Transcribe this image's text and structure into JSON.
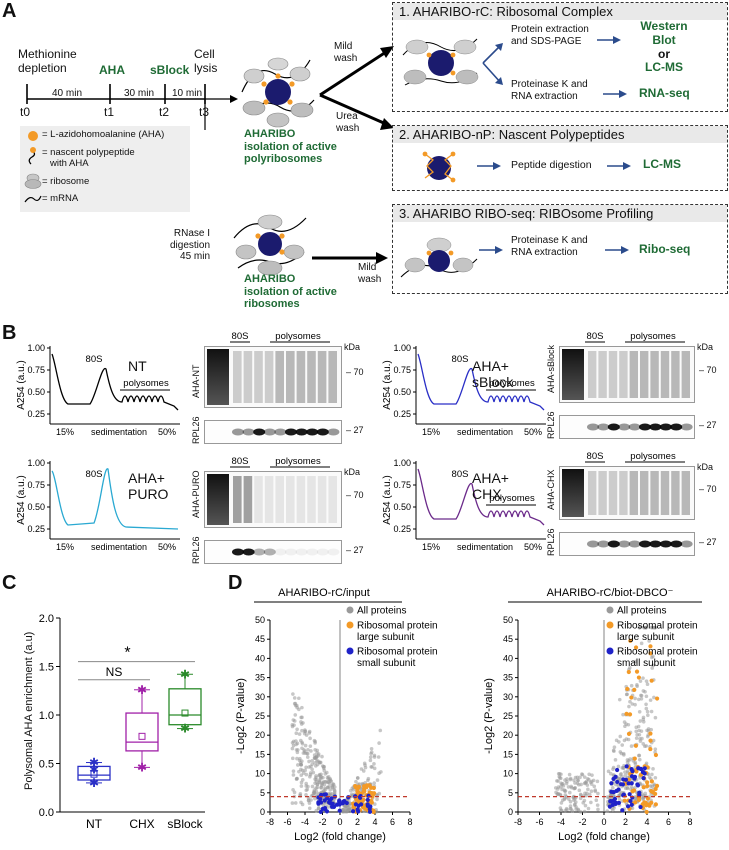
{
  "panelA": {
    "letter": "A",
    "timeline": {
      "steps": [
        "Methionine\ndepletion",
        "AHA",
        "sBlock",
        "Cell\nlysis"
      ],
      "step1": "Methionine",
      "step1b": "depletion",
      "step2": "AHA",
      "step3": "sBlock",
      "step4a": "Cell",
      "step4b": "lysis",
      "t0": "t0",
      "t1": "t1",
      "t2": "t2",
      "t3": "t3",
      "d1": "40 min",
      "d2": "30 min",
      "d3": "10 min"
    },
    "legend": {
      "aha": "= L-azidohomoalanine (AHA)",
      "nascent1": "= nascent polypeptide",
      "nascent2": "with AHA",
      "ribosome": "= ribosome",
      "mrna": "= mRNA"
    },
    "top_complex_label1": "AHARIBO",
    "top_complex_label2": "isolation of active",
    "top_complex_label3": "polyribosomes",
    "mild_wash": "Mild\nwash",
    "mild1": "Mild",
    "mild2": "wash",
    "urea1": "Urea",
    "urea2": "wash",
    "rnase1": "RNase I",
    "rnase2": "digestion",
    "rnase3": "45 min",
    "bottom_complex_label1": "AHARIBO",
    "bottom_complex_label2": "isolation of active",
    "bottom_complex_label3": "ribosomes",
    "mild_wash2a": "Mild",
    "mild_wash2b": "wash",
    "box1": {
      "title": "1. AHARIBO-rC: Ribosomal Complex",
      "step_a1": "Protein extraction",
      "step_a2": "and SDS-PAGE",
      "out_a1": "Western",
      "out_a2": "Blot",
      "out_a3": "or",
      "out_a4": "LC-MS",
      "step_b1": "Proteinase K and",
      "step_b2": "RNA extraction",
      "out_b": "RNA-seq"
    },
    "box2": {
      "title": "2. AHARIBO-nP: Nascent Polypeptides",
      "step": "Peptide digestion",
      "out": "LC-MS"
    },
    "box3": {
      "title": "3. AHARIBO RIBO-seq: RIBOsome Profiling",
      "step1": "Proteinase K and",
      "step2": "RNA extraction",
      "out": "Ribo-seq"
    }
  },
  "panelB": {
    "letter": "B",
    "profiles": [
      {
        "label1": "NT",
        "label2": "",
        "color": "#000000",
        "ylabel": "A254 (a.u.)",
        "peak": "80S",
        "polys": "polysomes",
        "x0": "15%",
        "x1": "50%",
        "xlabel": "sedimentation",
        "yticks": [
          "0.25",
          "0.50",
          "0.75",
          "1.00"
        ]
      },
      {
        "label1": "AHA+",
        "label2": "PURO",
        "color": "#2aa9d2",
        "ylabel": "A254 (a.u.)",
        "peak": "80S",
        "polys": "",
        "x0": "15%",
        "x1": "50%",
        "xlabel": "sedimentation",
        "yticks": [
          "0.25",
          "0.50",
          "0.75",
          "1.00"
        ]
      },
      {
        "label1": "AHA+",
        "label2": "sBlock",
        "color": "#2a2fc6",
        "ylabel": "A254 (a.u.)",
        "peak": "80S",
        "polys": "polysomes",
        "x0": "15%",
        "x1": "50%",
        "xlabel": "sedimentation",
        "yticks": [
          "0.25",
          "0.50",
          "0.75",
          "1.00"
        ]
      },
      {
        "label1": "AHA+",
        "label2": "CHX",
        "color": "#6b2a8a",
        "ylabel": "A254 (a.u.)",
        "peak": "80S",
        "polys": "polysomes",
        "x0": "15%",
        "x1": "50%",
        "xlabel": "sedimentation",
        "yticks": [
          "0.25",
          "0.50",
          "0.75",
          "1.00"
        ]
      }
    ],
    "blots": [
      {
        "lane_label": "AHA-NT",
        "peak": "80S",
        "polys": "polysomes",
        "kda": "kDa",
        "m1": "70",
        "m2": "27",
        "strip_label": "RPL26"
      },
      {
        "lane_label": "AHA-PURO",
        "peak": "80S",
        "polys": "polysomes",
        "kda": "kDa",
        "m1": "70",
        "m2": "27",
        "strip_label": "RPL26"
      },
      {
        "lane_label": "AHA-sBlock",
        "peak": "80S",
        "polys": "polysomes",
        "kda": "kDa",
        "m1": "70",
        "m2": "27",
        "strip_label": "RPL26"
      },
      {
        "lane_label": "AHA-CHX",
        "peak": "80S",
        "polys": "polysomes",
        "kda": "kDa",
        "m1": "70",
        "m2": "27",
        "strip_label": "RPL26"
      }
    ]
  },
  "panelC": {
    "letter": "C",
    "ylabel": "Polysomal AHA enrichment (a.u)",
    "yticks": [
      "0.0",
      "0.5",
      "1.0",
      "1.5",
      "2.0"
    ],
    "ns": "NS",
    "star": "*"
  },
  "chart_data": [
    {
      "type": "box",
      "ylabel": "Polysomal AHA enrichment (a.u)",
      "ylim": [
        0,
        2.0
      ],
      "categories": [
        "NT",
        "CHX",
        "sBlock"
      ],
      "series": [
        {
          "name": "NT",
          "color": "#2a2fc6",
          "q1": 0.33,
          "median": 0.38,
          "q3": 0.47,
          "min": 0.3,
          "max": 0.51,
          "mean": 0.39,
          "points": [
            0.51,
            0.44,
            0.3
          ]
        },
        {
          "name": "CHX",
          "color": "#a020a8",
          "q1": 0.63,
          "median": 0.72,
          "q3": 1.02,
          "min": 0.46,
          "max": 1.26,
          "mean": 0.78,
          "points": [
            1.26,
            0.46
          ]
        },
        {
          "name": "sBlock",
          "color": "#2a8a2a",
          "q1": 0.9,
          "median": 1.0,
          "q3": 1.27,
          "min": 0.86,
          "max": 1.42,
          "mean": 1.02,
          "points": [
            1.42,
            0.86
          ]
        }
      ],
      "annotations": [
        {
          "text": "NS",
          "between": [
            "NT",
            "CHX"
          ]
        },
        {
          "text": "*",
          "between": [
            "NT",
            "sBlock"
          ]
        }
      ]
    },
    {
      "type": "scatter",
      "title": "AHARIBO-rC/input",
      "xlabel": "Log2 (fold change)",
      "ylabel": "-Log2 (P-value)",
      "xlim": [
        -8,
        8
      ],
      "ylim": [
        0,
        50
      ],
      "threshold_y": 4,
      "series": [
        {
          "name": "All proteins",
          "color": "#9a9a9a"
        },
        {
          "name": "Ribosomal protein large subunit",
          "color": "#f39a27"
        },
        {
          "name": "Ribosomal protein small subunit",
          "color": "#1f22c8"
        }
      ]
    },
    {
      "type": "scatter",
      "title": "AHARIBO-rC/biot-DBCO⁻",
      "xlabel": "Log2 (fold change)",
      "ylabel": "-Log2 (P-value)",
      "xlim": [
        -8,
        8
      ],
      "ylim": [
        0,
        50
      ],
      "threshold_y": 4,
      "series": [
        {
          "name": "All proteins",
          "color": "#9a9a9a"
        },
        {
          "name": "Ribosomal protein large subunit",
          "color": "#f39a27"
        },
        {
          "name": "Ribosomal protein small subunit",
          "color": "#1f22c8"
        }
      ]
    }
  ],
  "panelD": {
    "letter": "D",
    "left_title": "AHARIBO-rC/input",
    "right_title": "AHARIBO-rC/biot-DBCO⁻",
    "legend1": "All proteins",
    "legend2a": "Ribosomal protein",
    "legend2b": "large subunit",
    "legend3a": "Ribosomal protein",
    "legend3b": "small subunit",
    "xlabel": "Log2 (fold change)",
    "ylabel": "-Log2 (P-value)",
    "xticks": [
      "-8",
      "-6",
      "-4",
      "-2",
      "0",
      "2",
      "4",
      "6",
      "8"
    ],
    "yticks": [
      "0",
      "5",
      "10",
      "15",
      "20",
      "25",
      "30",
      "35",
      "40",
      "45",
      "50"
    ]
  }
}
